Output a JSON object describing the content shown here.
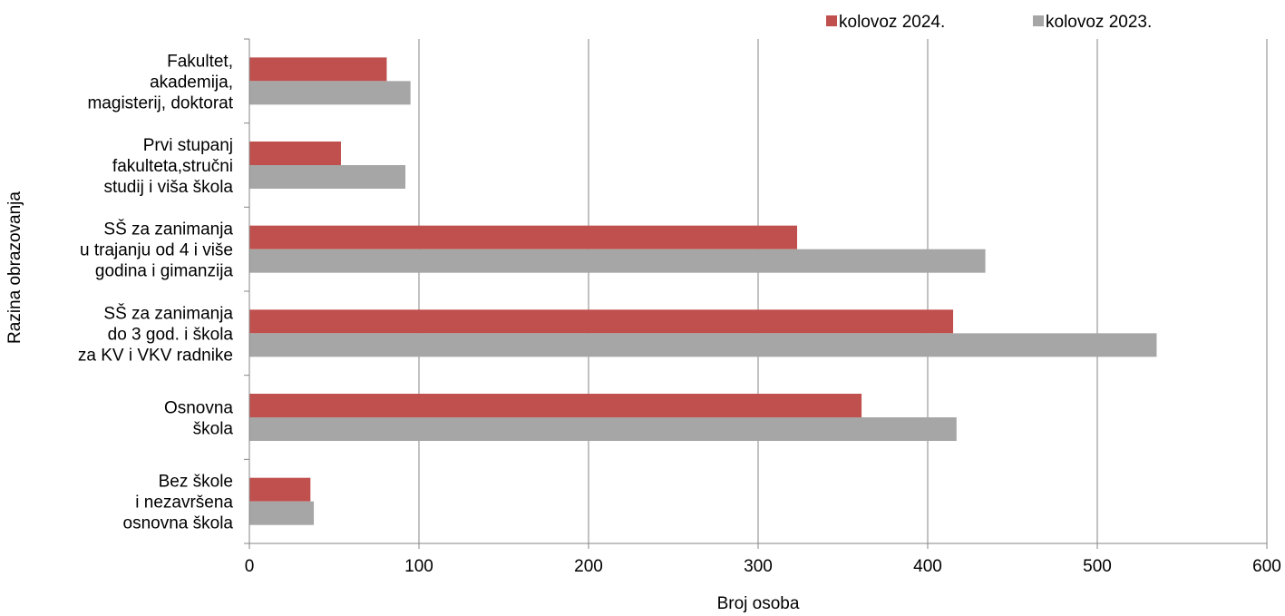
{
  "chart_data": {
    "type": "bar",
    "orientation": "horizontal",
    "categories": [
      [
        "Fakultet,",
        "akademija,",
        "magisterij, doktorat"
      ],
      [
        "Prvi stupanj",
        "fakulteta,stručni",
        "studij i viša škola"
      ],
      [
        "SŠ za zanimanja",
        "u trajanju od 4 i više",
        "godina i gimanzija"
      ],
      [
        "SŠ za zanimanja",
        "do 3 god. i škola",
        "za KV i VKV radnike"
      ],
      [
        "Osnovna",
        "škola"
      ],
      [
        "Bez škole",
        "i nezavršena",
        "osnovna škola"
      ]
    ],
    "series": [
      {
        "name": "kolovoz 2024.",
        "color": "#c0504d",
        "values": [
          81,
          54,
          323,
          415,
          361,
          36
        ]
      },
      {
        "name": "kolovoz 2023.",
        "color": "#a6a6a6",
        "values": [
          95,
          92,
          434,
          535,
          417,
          38
        ]
      }
    ],
    "xlabel": "Broj osoba",
    "ylabel": "Razina obrazovanja",
    "xlim": [
      0,
      600
    ],
    "xticks": [
      "0",
      "100",
      "200",
      "300",
      "400",
      "500",
      "600"
    ],
    "grid": true,
    "legend_position": "top-right"
  }
}
